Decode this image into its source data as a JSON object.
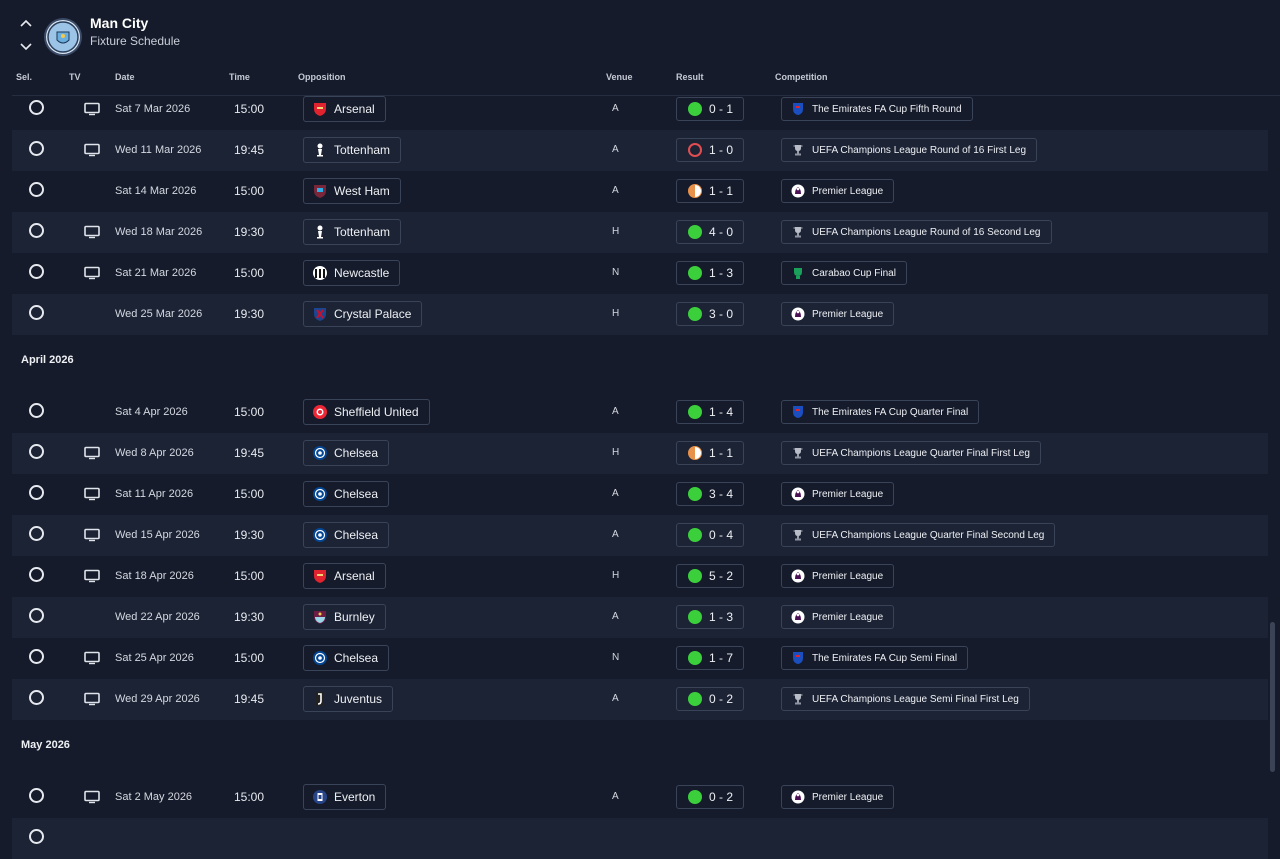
{
  "header": {
    "club": "Man City",
    "subtitle": "Fixture Schedule"
  },
  "columns": {
    "sel": "Sel.",
    "tv": "TV",
    "date": "Date",
    "time": "Time",
    "opposition": "Opposition",
    "venue": "Venue",
    "result": "Result",
    "competition": "Competition"
  },
  "colors": {
    "win": "#3ccf3c",
    "loss": "#e24d52",
    "draw": "#e8914a",
    "background": "#151b2a",
    "row_alt": "#1c2334"
  },
  "sections": [
    {
      "label": "",
      "rows": [
        {
          "tv": true,
          "date": "Sat 7 Mar 2026",
          "time": "15:00",
          "opp": "Arsenal",
          "badge": "arsenal",
          "venue": "A",
          "res": "w",
          "score": "0 - 1",
          "comp": "The Emirates FA Cup Fifth Round",
          "cicon": "fa-cup-icon"
        },
        {
          "tv": true,
          "date": "Wed 11 Mar 2026",
          "time": "19:45",
          "opp": "Tottenham",
          "badge": "tottenham",
          "venue": "A",
          "res": "l",
          "score": "1 - 0",
          "comp": "UEFA Champions League Round of 16  First Leg",
          "cicon": "ucl-trophy-icon"
        },
        {
          "tv": false,
          "date": "Sat 14 Mar 2026",
          "time": "15:00",
          "opp": "West Ham",
          "badge": "westham",
          "venue": "A",
          "res": "d",
          "score": "1 - 1",
          "comp": "Premier League",
          "cicon": "premier-league-icon"
        },
        {
          "tv": true,
          "date": "Wed 18 Mar 2026",
          "time": "19:30",
          "opp": "Tottenham",
          "badge": "tottenham",
          "venue": "H",
          "res": "w",
          "score": "4 - 0",
          "comp": "UEFA Champions League Round of 16  Second Leg",
          "cicon": "ucl-trophy-icon"
        },
        {
          "tv": true,
          "date": "Sat 21 Mar 2026",
          "time": "15:00",
          "opp": "Newcastle",
          "badge": "newcastle",
          "venue": "N",
          "res": "w",
          "score": "1 - 3",
          "comp": "Carabao Cup Final",
          "cicon": "carabao-cup-icon"
        },
        {
          "tv": false,
          "date": "Wed 25 Mar 2026",
          "time": "19:30",
          "opp": "Crystal Palace",
          "badge": "palace",
          "venue": "H",
          "res": "w",
          "score": "3 - 0",
          "comp": "Premier League",
          "cicon": "premier-league-icon"
        }
      ]
    },
    {
      "label": "April 2026",
      "rows": [
        {
          "tv": false,
          "date": "Sat 4 Apr 2026",
          "time": "15:00",
          "opp": "Sheffield United",
          "badge": "sheffield",
          "venue": "A",
          "res": "w",
          "score": "1 - 4",
          "comp": "The Emirates FA Cup Quarter Final",
          "cicon": "fa-cup-icon"
        },
        {
          "tv": true,
          "date": "Wed 8 Apr 2026",
          "time": "19:45",
          "opp": "Chelsea",
          "badge": "chelsea",
          "venue": "H",
          "res": "d",
          "score": "1 - 1",
          "comp": "UEFA Champions League Quarter Final First Leg",
          "cicon": "ucl-trophy-icon"
        },
        {
          "tv": true,
          "date": "Sat 11 Apr 2026",
          "time": "15:00",
          "opp": "Chelsea",
          "badge": "chelsea",
          "venue": "A",
          "res": "w",
          "score": "3 - 4",
          "comp": "Premier League",
          "cicon": "premier-league-icon"
        },
        {
          "tv": true,
          "date": "Wed 15 Apr 2026",
          "time": "19:30",
          "opp": "Chelsea",
          "badge": "chelsea",
          "venue": "A",
          "res": "w",
          "score": "0 - 4",
          "comp": "UEFA Champions League Quarter Final Second Leg",
          "cicon": "ucl-trophy-icon"
        },
        {
          "tv": true,
          "date": "Sat 18 Apr 2026",
          "time": "15:00",
          "opp": "Arsenal",
          "badge": "arsenal",
          "venue": "H",
          "res": "w",
          "score": "5 - 2",
          "comp": "Premier League",
          "cicon": "premier-league-icon"
        },
        {
          "tv": false,
          "date": "Wed 22 Apr 2026",
          "time": "19:30",
          "opp": "Burnley",
          "badge": "burnley",
          "venue": "A",
          "res": "w",
          "score": "1 - 3",
          "comp": "Premier League",
          "cicon": "premier-league-icon"
        },
        {
          "tv": true,
          "date": "Sat 25 Apr 2026",
          "time": "15:00",
          "opp": "Chelsea",
          "badge": "chelsea",
          "venue": "N",
          "res": "w",
          "score": "1 - 7",
          "comp": "The Emirates FA Cup Semi Final",
          "cicon": "fa-cup-icon"
        },
        {
          "tv": true,
          "date": "Wed 29 Apr 2026",
          "time": "19:45",
          "opp": "Juventus",
          "badge": "juventus",
          "venue": "A",
          "res": "w",
          "score": "0 - 2",
          "comp": "UEFA Champions League Semi Final First Leg",
          "cicon": "ucl-trophy-icon"
        }
      ]
    },
    {
      "label": "May 2026",
      "rows": [
        {
          "tv": true,
          "date": "Sat 2 May 2026",
          "time": "15:00",
          "opp": "Everton",
          "badge": "everton",
          "venue": "A",
          "res": "w",
          "score": "0 - 2",
          "comp": "Premier League",
          "cicon": "premier-league-icon"
        }
      ]
    }
  ]
}
